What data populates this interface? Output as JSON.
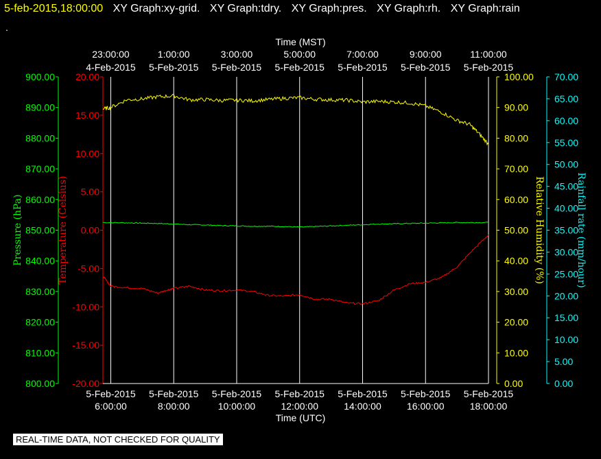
{
  "header": {
    "timestamp": "5-feb-2015,18:00:00",
    "titles": [
      "XY Graph:xy-grid.",
      "XY Graph:tdry.",
      "XY Graph:pres.",
      "XY Graph:rh.",
      "XY Graph:rain"
    ],
    "dot": "."
  },
  "disclaimer": "REAL-TIME DATA, NOT CHECKED FOR QUALITY",
  "colors": {
    "pressure": "#00ff00",
    "temperature": "#ff0000",
    "humidity": "#ffff00",
    "rain": "#00ffff",
    "grid": "#ffffff",
    "background": "#000000"
  },
  "chart_data": {
    "type": "line",
    "x_range_utc_hours": [
      5.75,
      18.0
    ],
    "top_axis": {
      "label": "Time (MST)",
      "ticks": [
        {
          "hour_utc": 6,
          "time": "23:00:00",
          "date": "4-Feb-2015"
        },
        {
          "hour_utc": 8,
          "time": "1:00:00",
          "date": "5-Feb-2015"
        },
        {
          "hour_utc": 10,
          "time": "3:00:00",
          "date": "5-Feb-2015"
        },
        {
          "hour_utc": 12,
          "time": "5:00:00",
          "date": "5-Feb-2015"
        },
        {
          "hour_utc": 14,
          "time": "7:00:00",
          "date": "5-Feb-2015"
        },
        {
          "hour_utc": 16,
          "time": "9:00:00",
          "date": "5-Feb-2015"
        },
        {
          "hour_utc": 18,
          "time": "11:00:00",
          "date": "5-Feb-2015"
        }
      ]
    },
    "bottom_axis": {
      "label": "Time (UTC)",
      "ticks": [
        {
          "hour_utc": 6,
          "date": "5-Feb-2015",
          "time": "6:00:00"
        },
        {
          "hour_utc": 8,
          "date": "5-Feb-2015",
          "time": "8:00:00"
        },
        {
          "hour_utc": 10,
          "date": "5-Feb-2015",
          "time": "10:00:00"
        },
        {
          "hour_utc": 12,
          "date": "5-Feb-2015",
          "time": "12:00:00"
        },
        {
          "hour_utc": 14,
          "date": "5-Feb-2015",
          "time": "14:00:00"
        },
        {
          "hour_utc": 16,
          "date": "5-Feb-2015",
          "time": "16:00:00"
        },
        {
          "hour_utc": 18,
          "date": "5-Feb-2015",
          "time": "18:00:00"
        }
      ]
    },
    "y_axes": [
      {
        "key": "pressure",
        "label": "Pressure (hPa)",
        "range": [
          800,
          900
        ],
        "step": 10,
        "ticks": [
          "900.00",
          "890.00",
          "880.00",
          "870.00",
          "860.00",
          "850.00",
          "840.00",
          "830.00",
          "820.00",
          "810.00",
          "800.00"
        ]
      },
      {
        "key": "temperature",
        "label": "Temperature (Celsius)",
        "range": [
          -20,
          20
        ],
        "step": 5,
        "ticks": [
          "20.00",
          "15.00",
          "10.00",
          "5.00",
          "0.00",
          "-5.00",
          "-10.00",
          "-15.00",
          "-20.00"
        ]
      },
      {
        "key": "humidity",
        "label": "Relative Humidity (%)",
        "range": [
          0,
          100
        ],
        "step": 10,
        "ticks": [
          "100.00",
          "90.00",
          "80.00",
          "70.00",
          "60.00",
          "50.00",
          "40.00",
          "30.00",
          "20.00",
          "10.00",
          "0.00"
        ]
      },
      {
        "key": "rain",
        "label": "Rainfall rate (mm/hour)",
        "range": [
          0,
          70
        ],
        "step": 5,
        "ticks": [
          "70.00",
          "65.00",
          "60.00",
          "55.00",
          "50.00",
          "45.00",
          "40.00",
          "35.00",
          "30.00",
          "25.00",
          "20.00",
          "15.00",
          "10.00",
          "5.00",
          "0.00"
        ]
      }
    ],
    "series": [
      {
        "axis": "pressure",
        "x": [
          5.75,
          6.5,
          7,
          7.5,
          8,
          8.5,
          9,
          9.5,
          10,
          10.5,
          11,
          11.5,
          12,
          12.5,
          13,
          13.5,
          14,
          14.5,
          15,
          15.5,
          16,
          16.5,
          17,
          17.5,
          18
        ],
        "values": [
          852.5,
          852.4,
          852.3,
          852.2,
          852,
          851.8,
          851.7,
          851.5,
          851.4,
          851.3,
          851.3,
          851.2,
          851,
          851.2,
          851.4,
          851.6,
          851.8,
          852,
          852.1,
          852.2,
          852.3,
          852.4,
          852.5,
          852.5,
          852.5
        ]
      },
      {
        "axis": "temperature",
        "x": [
          5.75,
          6,
          6.5,
          7,
          7.5,
          7.8,
          8,
          8.5,
          9,
          9.5,
          10,
          10.5,
          11,
          11.5,
          12,
          12.5,
          13,
          13.5,
          14,
          14.5,
          15,
          15.5,
          16,
          16.5,
          17,
          17.5,
          18
        ],
        "values": [
          -6,
          -7.3,
          -7.5,
          -7.6,
          -8.2,
          -7.8,
          -7.6,
          -7.3,
          -7.8,
          -7.9,
          -7.8,
          -8,
          -8.5,
          -8.6,
          -8.4,
          -9,
          -9,
          -9.5,
          -9.6,
          -9.2,
          -7.8,
          -7,
          -6.8,
          -6.2,
          -4.8,
          -2.6,
          -0.6
        ]
      },
      {
        "axis": "humidity",
        "x": [
          5.75,
          6,
          6.5,
          7,
          7.5,
          8,
          8.5,
          9,
          9.5,
          10,
          10.5,
          11,
          11.5,
          12,
          12.5,
          13,
          13.5,
          14,
          14.5,
          15,
          15.5,
          16,
          16.5,
          17,
          17.4,
          17.7,
          18
        ],
        "values": [
          89.5,
          90,
          92.5,
          92.8,
          93.5,
          93.8,
          92.5,
          92.6,
          92.3,
          92.4,
          92.2,
          92.6,
          93,
          93.2,
          92.7,
          92.5,
          92.4,
          91.8,
          92,
          91.8,
          91.5,
          90.5,
          88.5,
          85.8,
          84.5,
          81.5,
          78
        ]
      }
    ],
    "grid": true
  }
}
